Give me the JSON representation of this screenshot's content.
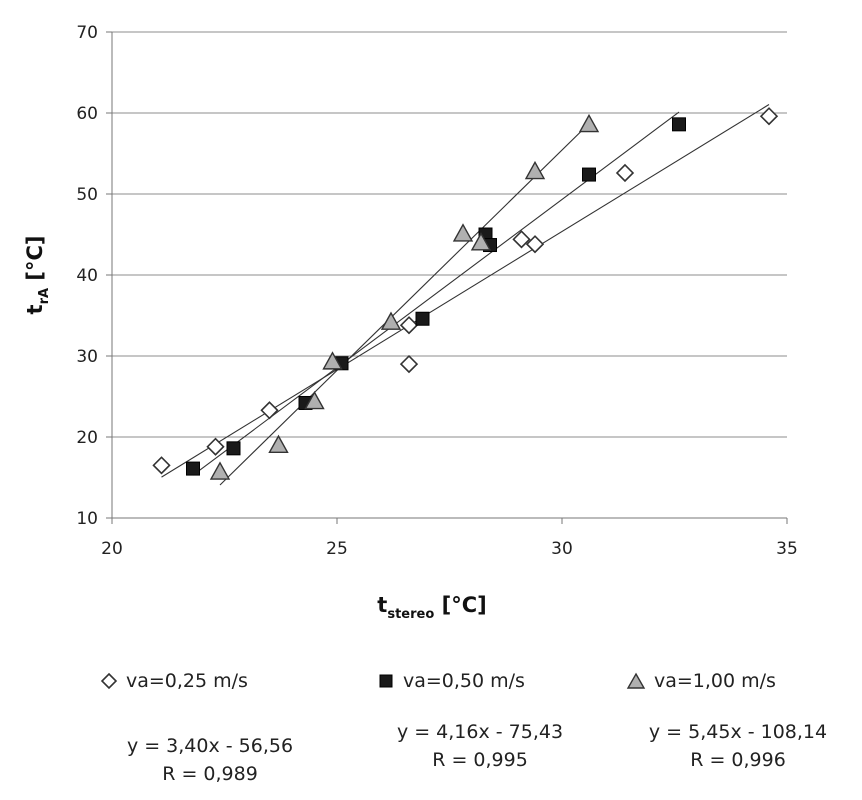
{
  "chart_data": {
    "type": "scatter",
    "xlabel_main": "t",
    "xlabel_sub": "stereo",
    "xlabel_unit": " [°C]",
    "ylabel_main": "t",
    "ylabel_sub": "rA",
    "ylabel_unit": " [°C]",
    "xlim": [
      20,
      35
    ],
    "ylim": [
      10,
      70
    ],
    "xticks": [
      20,
      25,
      30,
      35
    ],
    "yticks": [
      10,
      20,
      30,
      40,
      50,
      60,
      70
    ],
    "grid": true,
    "legend_position": "bottom",
    "series": [
      {
        "name": "va=0,25 m/s",
        "marker": "diamond",
        "color": "#ffffff",
        "points": [
          [
            21.1,
            16.5
          ],
          [
            22.3,
            18.8
          ],
          [
            23.5,
            23.3
          ],
          [
            26.6,
            29.0
          ],
          [
            26.6,
            33.8
          ],
          [
            29.1,
            44.4
          ],
          [
            29.4,
            43.8
          ],
          [
            31.4,
            52.6
          ],
          [
            34.6,
            59.6
          ]
        ],
        "fit_x": [
          21.1,
          34.6
        ],
        "equation": "y = 3,40x - 56,56",
        "r": "R = 0,989"
      },
      {
        "name": "va=0,50 m/s",
        "marker": "square",
        "color": "#1a1a1a",
        "points": [
          [
            21.8,
            16.1
          ],
          [
            22.7,
            18.6
          ],
          [
            24.3,
            24.2
          ],
          [
            25.1,
            29.1
          ],
          [
            26.9,
            34.6
          ],
          [
            28.3,
            45.0
          ],
          [
            28.4,
            43.7
          ],
          [
            30.6,
            52.4
          ],
          [
            32.6,
            58.6
          ]
        ],
        "fit_x": [
          21.8,
          32.6
        ],
        "equation": "y = 4,16x - 75,43",
        "r": "R = 0,995"
      },
      {
        "name": "va=1,00 m/s",
        "marker": "triangle",
        "color": "#b0b0b0",
        "points": [
          [
            22.4,
            15.7
          ],
          [
            23.7,
            19.0
          ],
          [
            24.5,
            24.4
          ],
          [
            24.9,
            29.3
          ],
          [
            26.2,
            34.2
          ],
          [
            27.8,
            45.1
          ],
          [
            28.2,
            44.0
          ],
          [
            29.4,
            52.8
          ],
          [
            30.6,
            58.6
          ]
        ],
        "fit_x": [
          22.4,
          30.6
        ],
        "equation": "y = 5,45x - 108,14",
        "r": "R = 0,996"
      }
    ]
  }
}
